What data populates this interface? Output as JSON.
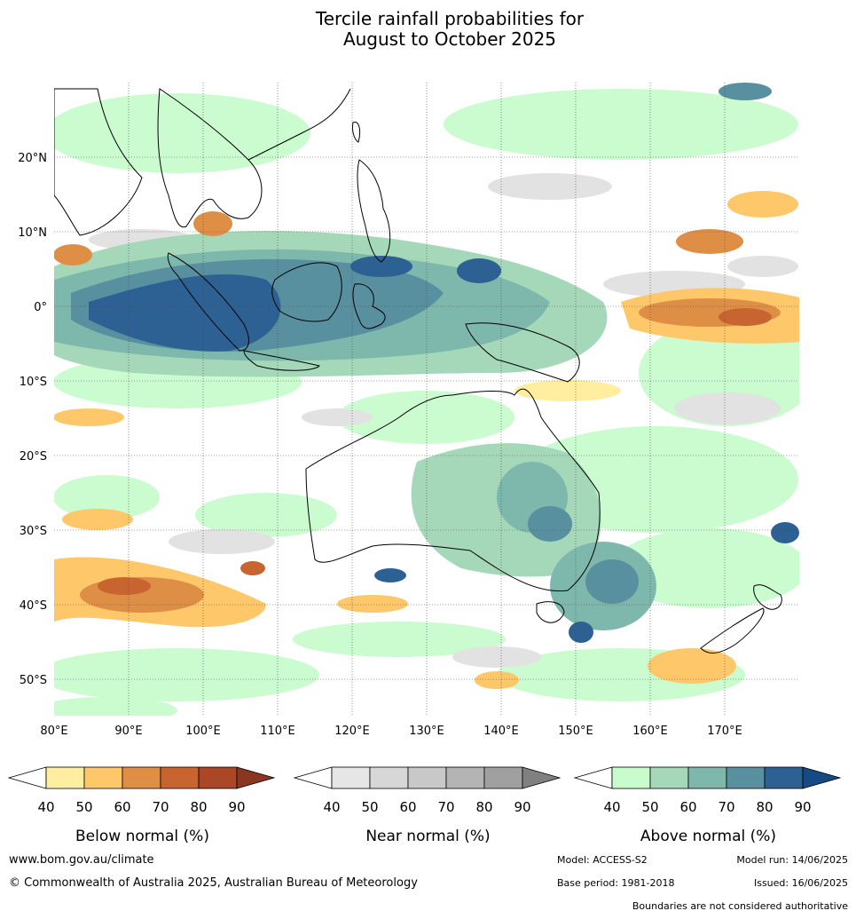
{
  "title": {
    "line1": "Tercile rainfall probabilities for",
    "line2": "August to October 2025"
  },
  "map": {
    "lon_labels": [
      "80°E",
      "90°E",
      "100°E",
      "110°E",
      "120°E",
      "130°E",
      "140°E",
      "150°E",
      "160°E",
      "170°E"
    ],
    "lat_labels": [
      "20°N",
      "10°N",
      "0°",
      "10°S",
      "20°S",
      "30°S",
      "40°S",
      "50°S"
    ],
    "extent": {
      "lon": [
        80,
        180
      ],
      "lat": [
        -55,
        30
      ]
    }
  },
  "legends": [
    {
      "title": "Below normal (%)",
      "ticks": [
        "40",
        "50",
        "60",
        "70",
        "80",
        "90"
      ],
      "colors": [
        "#ffffff",
        "#ffeea0",
        "#fdc76a",
        "#de8f45",
        "#c86430",
        "#a94726",
        "#8a3620"
      ]
    },
    {
      "title": "Near normal (%)",
      "ticks": [
        "40",
        "50",
        "60",
        "70",
        "80",
        "90"
      ],
      "colors": [
        "#ffffff",
        "#e6e6e6",
        "#d7d7d7",
        "#c8c8c8",
        "#b4b4b4",
        "#a0a0a0",
        "#808080"
      ]
    },
    {
      "title": "Above normal (%)",
      "ticks": [
        "40",
        "50",
        "60",
        "70",
        "80",
        "90"
      ],
      "colors": [
        "#ffffff",
        "#c8fccd",
        "#a4d8b9",
        "#7eb8ac",
        "#5990a0",
        "#2d6193",
        "#154a84"
      ]
    }
  ],
  "footer": {
    "url": "www.bom.gov.au/climate",
    "copyright": "© Commonwealth of Australia 2025, Australian Bureau of Meteorology",
    "model": "Model: ACCESS-S2",
    "model_run": "Model run: 14/06/2025",
    "base_period": "Base period: 1981-2018",
    "issued": "Issued: 16/06/2025",
    "disclaimer": "Boundaries are not considered authoritative"
  }
}
